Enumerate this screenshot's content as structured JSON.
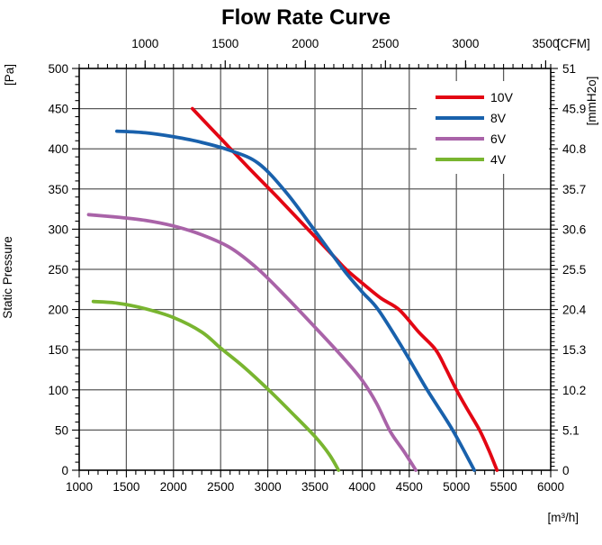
{
  "chart_data": {
    "type": "line",
    "title": "Flow Rate Curve",
    "grid": true,
    "legend_position": "top-right-inside",
    "x_axis_bottom": {
      "unit": "[m³/h]",
      "min": 1000,
      "max": 6000,
      "ticks": [
        1000,
        1500,
        2000,
        2500,
        3000,
        3500,
        4000,
        4500,
        5000,
        5500,
        6000
      ],
      "minor_step": 100
    },
    "x_axis_top": {
      "unit": "[CFM]",
      "ticks": [
        1000,
        1500,
        2000,
        2500,
        3000,
        3500
      ],
      "cfm_to_m3h": 1.699
    },
    "y_axis_left": {
      "unit": "[Pa]",
      "label": "Static Pressure",
      "min": 0,
      "max": 500,
      "ticks": [
        0,
        50,
        100,
        150,
        200,
        250,
        300,
        350,
        400,
        450,
        500
      ],
      "minor_step": 10
    },
    "y_axis_right": {
      "unit": "[mmH2o]",
      "ticks": [
        0,
        5.1,
        10.2,
        15.3,
        20.4,
        25.5,
        30.6,
        35.7,
        40.8,
        45.9,
        51
      ],
      "max_pa_equivalent": 500
    },
    "series": [
      {
        "name": "10V",
        "color": "#e30613",
        "points": [
          [
            2200,
            450
          ],
          [
            2500,
            413
          ],
          [
            2800,
            376
          ],
          [
            3100,
            340
          ],
          [
            3400,
            303
          ],
          [
            3700,
            266
          ],
          [
            3830,
            250
          ],
          [
            4000,
            233
          ],
          [
            4200,
            214
          ],
          [
            4390,
            200
          ],
          [
            4600,
            172
          ],
          [
            4780,
            150
          ],
          [
            4890,
            126
          ],
          [
            5000,
            100
          ],
          [
            5120,
            75
          ],
          [
            5245,
            50
          ],
          [
            5340,
            26
          ],
          [
            5430,
            0
          ]
        ]
      },
      {
        "name": "8V",
        "color": "#1961ac",
        "points": [
          [
            1400,
            422
          ],
          [
            1700,
            420
          ],
          [
            2000,
            415
          ],
          [
            2300,
            408
          ],
          [
            2600,
            398
          ],
          [
            2900,
            382
          ],
          [
            3200,
            345
          ],
          [
            3500,
            298
          ],
          [
            3800,
            250
          ],
          [
            4000,
            222
          ],
          [
            4170,
            200
          ],
          [
            4440,
            150
          ],
          [
            4690,
            100
          ],
          [
            4960,
            50
          ],
          [
            5190,
            0
          ]
        ]
      },
      {
        "name": "6V",
        "color": "#a963a8",
        "points": [
          [
            1100,
            318
          ],
          [
            1400,
            315
          ],
          [
            1700,
            311
          ],
          [
            2000,
            304
          ],
          [
            2300,
            293
          ],
          [
            2600,
            277
          ],
          [
            2900,
            250
          ],
          [
            3200,
            215
          ],
          [
            3500,
            178
          ],
          [
            3800,
            140
          ],
          [
            4000,
            112
          ],
          [
            4150,
            84
          ],
          [
            4300,
            48
          ],
          [
            4440,
            24
          ],
          [
            4570,
            0
          ]
        ]
      },
      {
        "name": "4V",
        "color": "#79b530",
        "points": [
          [
            1150,
            210
          ],
          [
            1400,
            208
          ],
          [
            1700,
            201
          ],
          [
            2000,
            190
          ],
          [
            2300,
            172
          ],
          [
            2500,
            152
          ],
          [
            2750,
            128
          ],
          [
            3000,
            101
          ],
          [
            3250,
            72
          ],
          [
            3500,
            42
          ],
          [
            3650,
            20
          ],
          [
            3750,
            0
          ]
        ]
      }
    ]
  },
  "colors": {
    "background": "#ffffff",
    "grid": "#5a5a5a",
    "border": "#000000",
    "text": "#000000"
  }
}
